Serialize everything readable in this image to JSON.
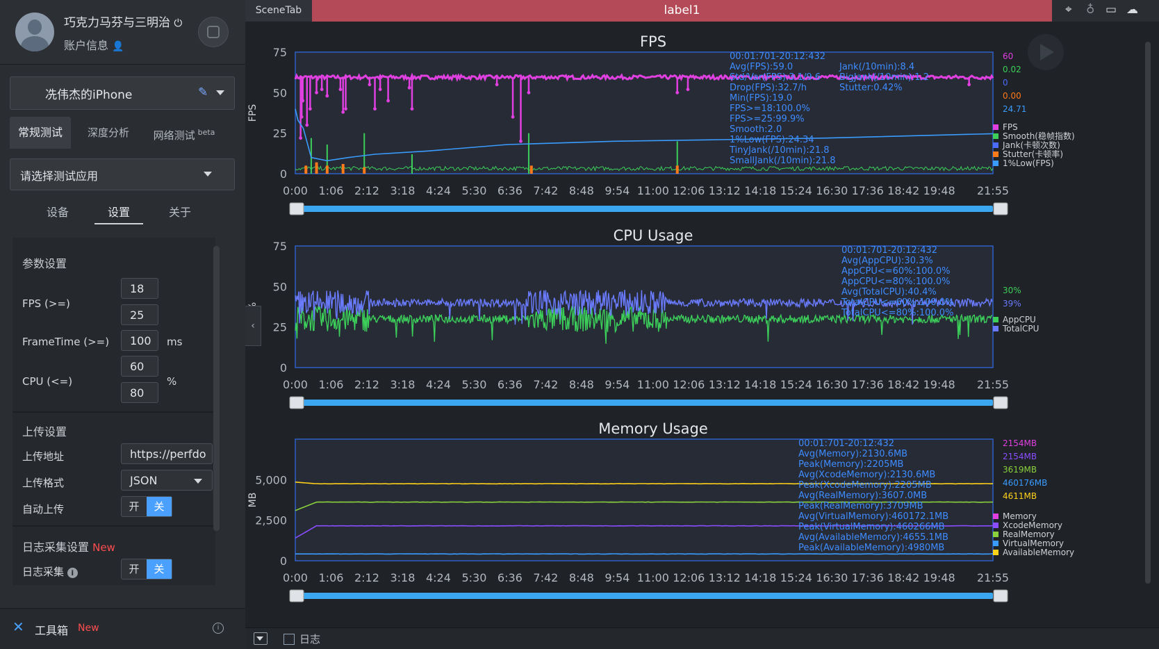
{
  "user": {
    "name": "巧克力马芬与三明治",
    "account_info": "账户信息"
  },
  "device": {
    "name": "冼伟杰的iPhone"
  },
  "main_tabs": [
    {
      "label": "常规测试"
    },
    {
      "label": "深度分析"
    },
    {
      "label": "网络测试",
      "badge": "beta"
    }
  ],
  "app_select": {
    "placeholder": "请选择测试应用"
  },
  "sub_tabs": [
    {
      "label": "设备"
    },
    {
      "label": "设置"
    },
    {
      "label": "关于"
    }
  ],
  "params": {
    "title": "参数设置",
    "fps_label": "FPS (>=)",
    "fps_values": [
      "18",
      "25"
    ],
    "frametime_label": "FrameTime (>=)",
    "frametime_value": "100",
    "frametime_unit": "ms",
    "cpu_label": "CPU (<=)",
    "cpu_values": [
      "60",
      "80"
    ],
    "cpu_unit": "%"
  },
  "upload": {
    "title": "上传设置",
    "addr_label": "上传地址",
    "addr_value": "https://perfdo",
    "format_label": "上传格式",
    "format_value": "JSON",
    "auto_label": "自动上传",
    "on": "开",
    "off": "关"
  },
  "log": {
    "title": "日志采集设置",
    "new": "New",
    "collect_label": "日志采集",
    "on": "开",
    "off": "关"
  },
  "toolbox": {
    "label": "工具箱",
    "new": "New"
  },
  "header": {
    "scene_tab": "SceneTab",
    "label_tab": "label1"
  },
  "bottom": {
    "log_label": "日志"
  },
  "chart_data": [
    {
      "type": "line",
      "title": "FPS",
      "ylabel": "FPS",
      "ylim": [
        0,
        75
      ],
      "yticks": [
        "0",
        "25",
        "50",
        "75"
      ],
      "xticks": [
        "0:00",
        "1:06",
        "2:12",
        "3:18",
        "4:24",
        "5:30",
        "6:36",
        "7:42",
        "8:48",
        "9:54",
        "11:00",
        "12:06",
        "13:12",
        "14:18",
        "15:24",
        "16:30",
        "17:36",
        "18:42",
        "19:48",
        "21:55"
      ],
      "xrange_seconds": [
        0,
        1315
      ],
      "stats": [
        "00:01:701-20:12:432",
        "Avg(FPS):59.0",
        "Std/Var(FPS):3.1/9.6",
        "Drop(FPS):32.7/h",
        "Min(FPS):19.0",
        "FPS>=18:100.0%",
        "FPS>=25:99.9%",
        "Smooth:2.0",
        "1%Low(FPS):24.34",
        "TinyJank(/10min):21.8",
        "SmallJank(/10min):21.8"
      ],
      "stats2": [
        "Jank(/10min):8.4",
        "BigJank(/10min):1.2",
        "Stutter:0.42%"
      ],
      "current_values": [
        {
          "value": "60",
          "color": "#e040e0"
        },
        {
          "value": "0.02",
          "color": "#3ccf5a"
        },
        {
          "value": "0",
          "color": "#4a6cff"
        },
        {
          "value": "0.00",
          "color": "#ff7a1a"
        },
        {
          "value": "24.71",
          "color": "#3a9cff"
        }
      ],
      "series": [
        {
          "name": "FPS",
          "color": "#e040e0",
          "base": 59.5,
          "dips": [
            [
              10,
              22
            ],
            [
              12,
              35
            ],
            [
              14,
              45
            ],
            [
              22,
              30
            ],
            [
              28,
              40
            ],
            [
              40,
              50
            ],
            [
              50,
              52
            ],
            [
              60,
              48
            ],
            [
              85,
              52
            ],
            [
              90,
              38
            ],
            [
              95,
              40
            ],
            [
              140,
              55
            ],
            [
              150,
              40
            ],
            [
              160,
              52
            ],
            [
              175,
              45
            ],
            [
              215,
              53
            ],
            [
              220,
              40
            ],
            [
              380,
              55
            ],
            [
              410,
              35
            ],
            [
              425,
              20
            ],
            [
              440,
              50
            ],
            [
              720,
              50
            ],
            [
              740,
              52
            ],
            [
              1270,
              55
            ]
          ]
        },
        {
          "name": "Smooth(稳帧指数)",
          "color": "#3ccf5a",
          "base": 2,
          "spikes": [
            [
              30,
              22
            ],
            [
              60,
              18
            ],
            [
              130,
              25
            ],
            [
              220,
              12
            ],
            [
              440,
              25
            ],
            [
              720,
              20
            ]
          ]
        },
        {
          "name": "Jank(卡顿次数)",
          "color": "#4a6cff"
        },
        {
          "name": "Stutter(卡顿率)",
          "color": "#ff7a1a",
          "spikes": [
            [
              20,
              5
            ],
            [
              40,
              7
            ],
            [
              60,
              5
            ],
            [
              90,
              6
            ],
            [
              130,
              4
            ],
            [
              445,
              5
            ],
            [
              720,
              5
            ]
          ]
        },
        {
          "name": "1%Low(FPS)",
          "color": "#3a9cff",
          "points": [
            [
              0,
              40
            ],
            [
              5,
              33
            ],
            [
              15,
              28
            ],
            [
              30,
              10
            ],
            [
              60,
              8
            ],
            [
              100,
              10
            ],
            [
              150,
              12
            ],
            [
              250,
              14
            ],
            [
              400,
              18
            ],
            [
              600,
              20
            ],
            [
              800,
              21
            ],
            [
              1000,
              22
            ],
            [
              1315,
              24.7
            ]
          ]
        }
      ]
    },
    {
      "type": "line",
      "title": "CPU Usage",
      "ylabel": "%",
      "ylim": [
        0,
        75
      ],
      "yticks": [
        "0",
        "25",
        "50",
        "75"
      ],
      "xticks": [
        "0:00",
        "1:06",
        "2:12",
        "3:18",
        "4:24",
        "5:30",
        "6:36",
        "7:42",
        "8:48",
        "9:54",
        "11:00",
        "12:06",
        "13:12",
        "14:18",
        "15:24",
        "16:30",
        "17:36",
        "18:42",
        "19:48",
        "21:55"
      ],
      "xrange_seconds": [
        0,
        1315
      ],
      "stats": [
        "00:01:701-20:12:432",
        "Avg(AppCPU):30.3%",
        "AppCPU<=60%:100.0%",
        "AppCPU<=80%:100.0%",
        "Avg(TotalCPU):40.4%",
        "TotalCPU<=60%:100.0%",
        "TotalCPU<=80%:100.0%"
      ],
      "current_values": [
        {
          "value": "30%",
          "color": "#3ccf5a"
        },
        {
          "value": "39%",
          "color": "#6a7bff"
        }
      ],
      "series": [
        {
          "name": "AppCPU",
          "color": "#3ccf5a",
          "base": 30
        },
        {
          "name": "TotalCPU",
          "color": "#6a7bff",
          "base": 40
        }
      ]
    },
    {
      "type": "line",
      "title": "Memory Usage",
      "ylabel": "MB",
      "ylim": [
        0,
        7500
      ],
      "yticks": [
        "0",
        "2,500",
        "5,000"
      ],
      "xticks": [
        "0:00",
        "1:06",
        "2:12",
        "3:18",
        "4:24",
        "5:30",
        "6:36",
        "7:42",
        "8:48",
        "9:54",
        "11:00",
        "12:06",
        "13:12",
        "14:18",
        "15:24",
        "16:30",
        "17:36",
        "18:42",
        "19:48",
        "21:55"
      ],
      "xrange_seconds": [
        0,
        1315
      ],
      "stats": [
        "00:01:701-20:12:432",
        "Avg(Memory):2130.6MB",
        "Peak(Memory):2205MB",
        "Avg(XcodeMemory):2130.6MB",
        "Peak(XcodeMemory):2205MB",
        "Avg(RealMemory):3607.0MB",
        "Peak(RealMemory):3709MB",
        "Avg(VirtualMemory):460172.1MB",
        "Peak(VirtualMemory):460266MB",
        "Avg(AvailableMemory):4655.1MB",
        "Peak(AvailableMemory):4980MB"
      ],
      "current_values": [
        {
          "value": "2154MB",
          "color": "#e040e0"
        },
        {
          "value": "2154MB",
          "color": "#8a4dff"
        },
        {
          "value": "3619MB",
          "color": "#8ad13c"
        },
        {
          "value": "460176MB",
          "color": "#3a9cff"
        },
        {
          "value": "4611MB",
          "color": "#ffd21a"
        }
      ],
      "series": [
        {
          "name": "Memory",
          "color": "#e040e0",
          "base": 2154
        },
        {
          "name": "XcodeMemory",
          "color": "#8a4dff",
          "base": 2154,
          "start": 1400
        },
        {
          "name": "RealMemory",
          "color": "#8ad13c",
          "base": 3619,
          "start": 3100
        },
        {
          "name": "VirtualMemory",
          "color": "#3a9cff",
          "base": 460176
        },
        {
          "name": "AvailableMemory",
          "color": "#ffd21a",
          "base": 4750,
          "start": 4850
        }
      ]
    }
  ]
}
